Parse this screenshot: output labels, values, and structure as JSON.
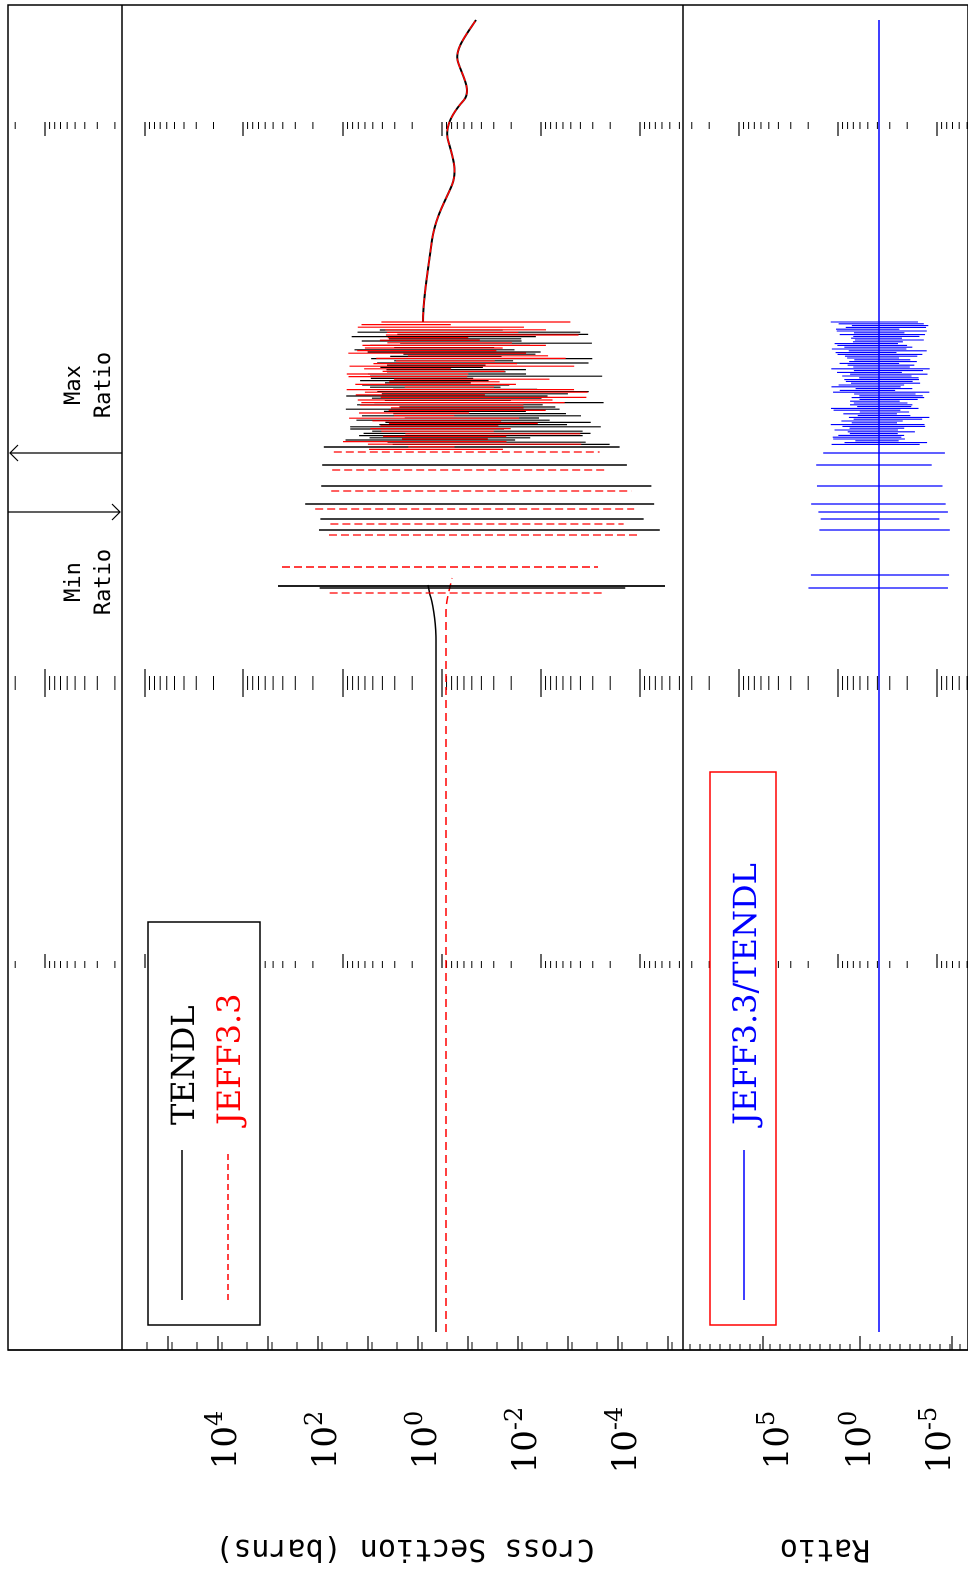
{
  "colors": {
    "tendl": "#000000",
    "jeff": "#ff0000",
    "ratio": "#0000ff",
    "ratio_legend_box": "#ff0000",
    "axes": "#000000"
  },
  "top_panel": {
    "ylabel": "Cross Section (barns)",
    "tick_labels": [
      {
        "base": "10",
        "exp": "4"
      },
      {
        "base": "10",
        "exp": "2"
      },
      {
        "base": "10",
        "exp": "0"
      },
      {
        "base": "10",
        "exp": "-2"
      },
      {
        "base": "10",
        "exp": "-4"
      }
    ],
    "legend": [
      "TENDL",
      "JEFF3.3"
    ]
  },
  "bottom_panel": {
    "ylabel": "Ratio",
    "tick_labels": [
      {
        "base": "10",
        "exp": "5"
      },
      {
        "base": "10",
        "exp": "0"
      },
      {
        "base": "10",
        "exp": "-5"
      }
    ],
    "legend": [
      "JEFF3.3/TENDL"
    ]
  },
  "annotations": {
    "min_line1": "Min",
    "min_line2": "Ratio",
    "max_line1": "Max",
    "max_line2": "Ratio"
  },
  "chart_data": [
    {
      "type": "line",
      "orientation": "rotated 90 degrees clockwise",
      "title": "",
      "xlabel": "",
      "ylabel": "Cross Section (barns)",
      "yscale": "log",
      "ylim": [
        1e-05,
        100000
      ],
      "yticks": [
        0.0001,
        0.01,
        1,
        100,
        10000
      ],
      "grid": false,
      "legend_position": "inside, upper-left of panel",
      "series": [
        {
          "name": "TENDL",
          "style": "solid",
          "color": "#000000",
          "baseline_value": 0.7
        },
        {
          "name": "JEFF3.3",
          "style": "dashed",
          "color": "#ff0000",
          "baseline_value": 0.4
        }
      ]
    },
    {
      "type": "line",
      "orientation": "rotated 90 degrees clockwise",
      "title": "",
      "xlabel": "",
      "ylabel": "Ratio",
      "yscale": "log",
      "ylim": [
        1e-07,
        10000000.0
      ],
      "yticks": [
        1e-05,
        1,
        100000
      ],
      "grid": false,
      "legend_position": "inside, upper-left of panel",
      "series": [
        {
          "name": "JEFF3.3/TENDL",
          "style": "solid",
          "color": "#0000ff",
          "baseline_value": 1
        }
      ]
    }
  ]
}
